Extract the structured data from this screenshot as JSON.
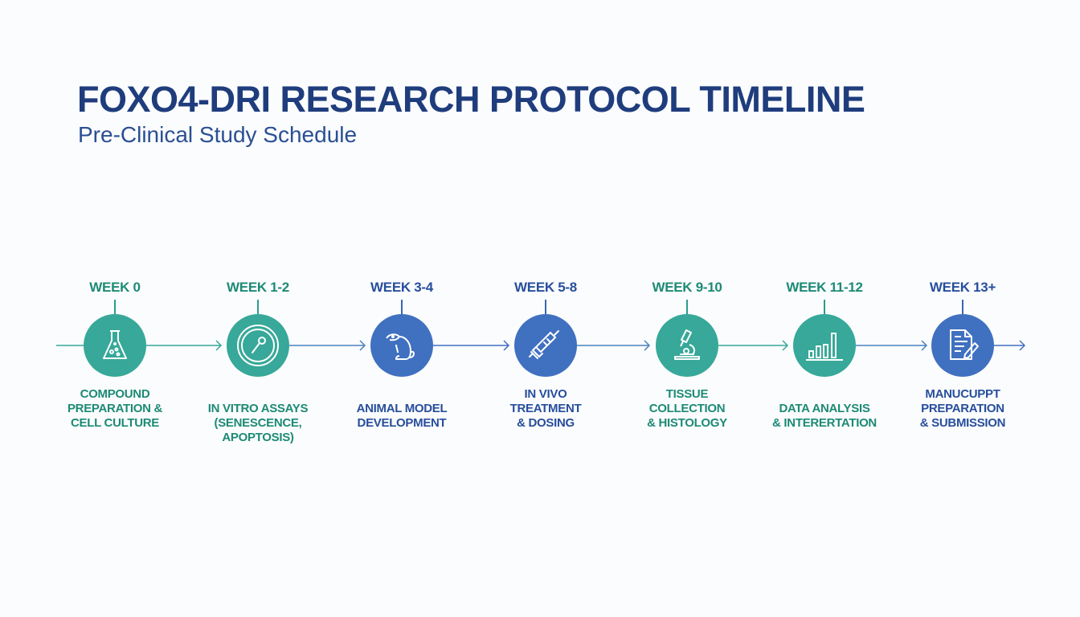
{
  "header": {
    "title": "FOXO4-DRI RESEARCH PROTOCOL TIMELINE",
    "subtitle": "Pre-Clinical Study Schedule"
  },
  "colors": {
    "teal": "#37a899",
    "blue": "#4070c0",
    "title": "#1f3d7d"
  },
  "steps": [
    {
      "week": "WEEK 0",
      "label": [
        "COMPOUND",
        "PREPARATION &",
        "CELL CULTURE"
      ],
      "icon": "flask-icon",
      "color": "teal"
    },
    {
      "week": "WEEK 1-2",
      "label": [
        "IN VITRO ASSAYS",
        "(SENESCENCE,",
        "APOPTOSIS)"
      ],
      "icon": "petri-dish-icon",
      "color": "teal"
    },
    {
      "week": "WEEK 3-4",
      "label": [
        "ANIMAL MODEL",
        "DEVELOPMENT"
      ],
      "icon": "mouse-icon",
      "color": "blue"
    },
    {
      "week": "WEEK 5-8",
      "label": [
        "IN VIVO",
        "TREATMENT",
        "& DOSING"
      ],
      "icon": "syringe-icon",
      "color": "blue"
    },
    {
      "week": "WEEK 9-10",
      "label": [
        "TISSUE",
        "COLLECTION",
        "& HISTOLOGY"
      ],
      "icon": "microscope-icon",
      "color": "teal"
    },
    {
      "week": "WEEK 11-12",
      "label": [
        "DATA ANALYSIS",
        "& INTERERTATION"
      ],
      "icon": "bar-chart-icon",
      "color": "teal"
    },
    {
      "week": "WEEK 13+",
      "label": [
        "MANUCUPPT",
        "PREPARATION",
        "& SUBMISSION"
      ],
      "icon": "document-pen-icon",
      "color": "blue"
    }
  ]
}
